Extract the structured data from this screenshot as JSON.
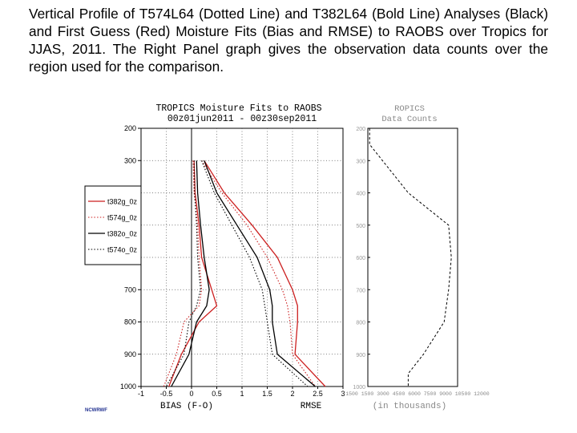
{
  "caption": "Vertical Profile of T574L64 (Dotted Line) and T382L64 (Bold Line) Analyses (Black) and First Guess (Red) Moisture Fits (Bias and RMSE) to RAOBS over Tropics for JJAS, 2011. The Right Panel graph gives the observation data counts over the region used for the comparison.",
  "credit": "NCWRWF",
  "chart_data": [
    {
      "type": "line",
      "title": "TROPICS Moisture Fits to RAOBS",
      "subtitle": "00z01jun2011 - 00z30sep2011",
      "xlabel_left": "BIAS (F-O)",
      "xlabel_right": "RMSE",
      "xlim": [
        -1,
        3
      ],
      "ylim": [
        200,
        1000
      ],
      "x_ticks": [
        "-1",
        "-0.5",
        "0",
        "0.5",
        "1",
        "1.5",
        "2",
        "2.5",
        "3"
      ],
      "y_ticks": [
        "200",
        "300",
        "700",
        "800",
        "900",
        "1000"
      ],
      "grid": true,
      "legend_position": "left",
      "series": [
        {
          "name": "t382g_0z",
          "color": "#cc1f1f",
          "style": "solid",
          "metric": "bias",
          "x": [
            0.05,
            0.07,
            0.15,
            0.2,
            0.4,
            0.5,
            0.15,
            -0.2,
            -0.45
          ],
          "y": [
            300,
            400,
            500,
            600,
            700,
            750,
            800,
            900,
            1000
          ]
        },
        {
          "name": "t382g_0z",
          "color": "#cc1f1f",
          "style": "solid",
          "metric": "rmse",
          "x": [
            0.25,
            0.65,
            1.2,
            1.7,
            2.0,
            2.1,
            2.1,
            2.05,
            2.65
          ],
          "y": [
            300,
            400,
            500,
            600,
            700,
            750,
            800,
            900,
            1000
          ]
        },
        {
          "name": "t574g_0z",
          "color": "#cc1f1f",
          "style": "dotted",
          "metric": "bias",
          "x": [
            0.03,
            0.05,
            0.12,
            0.15,
            0.2,
            0.15,
            -0.15,
            -0.3,
            -0.55
          ],
          "y": [
            300,
            400,
            500,
            600,
            700,
            750,
            800,
            900,
            1000
          ]
        },
        {
          "name": "t574g_0z",
          "color": "#cc1f1f",
          "style": "dotted",
          "metric": "rmse",
          "x": [
            0.2,
            0.6,
            1.1,
            1.5,
            1.8,
            1.9,
            1.95,
            2.0,
            2.45
          ],
          "y": [
            300,
            400,
            500,
            600,
            700,
            750,
            800,
            900,
            1000
          ]
        },
        {
          "name": "t382o_0z",
          "color": "#000000",
          "style": "solid",
          "metric": "bias",
          "x": [
            0.1,
            0.12,
            0.18,
            0.25,
            0.35,
            0.3,
            0.1,
            -0.05,
            -0.4
          ],
          "y": [
            300,
            400,
            500,
            600,
            700,
            750,
            800,
            900,
            1000
          ]
        },
        {
          "name": "t382o_0z",
          "color": "#000000",
          "style": "solid",
          "metric": "rmse",
          "x": [
            0.25,
            0.5,
            0.9,
            1.3,
            1.55,
            1.6,
            1.6,
            1.7,
            2.45
          ],
          "y": [
            300,
            400,
            500,
            600,
            700,
            750,
            800,
            900,
            1000
          ]
        },
        {
          "name": "t574o_0z",
          "color": "#000000",
          "style": "dotted",
          "metric": "bias",
          "x": [
            0.05,
            0.06,
            0.1,
            0.12,
            0.18,
            0.1,
            -0.05,
            -0.15,
            -0.5
          ],
          "y": [
            300,
            400,
            500,
            600,
            700,
            750,
            800,
            900,
            1000
          ]
        },
        {
          "name": "t574o_0z",
          "color": "#000000",
          "style": "dotted",
          "metric": "rmse",
          "x": [
            0.2,
            0.45,
            0.8,
            1.15,
            1.4,
            1.45,
            1.5,
            1.6,
            2.3
          ],
          "y": [
            300,
            400,
            500,
            600,
            700,
            750,
            800,
            900,
            1000
          ]
        }
      ]
    },
    {
      "type": "line",
      "title": "ROPICS",
      "subtitle": "Data Counts",
      "xlabel": "(in thousands)",
      "y_ticks": [
        "200",
        "300",
        "400",
        "500",
        "600",
        "700",
        "800",
        "900",
        "1000"
      ],
      "xlim": [
        0,
        1
      ],
      "ylim": [
        200,
        1000
      ],
      "x_tick_text": "-1500 1500 3000 4500 6000 7500 9000 10500 12000",
      "series": [
        {
          "name": "counts",
          "color": "#000000",
          "style": "dashed",
          "x": [
            0.02,
            0.02,
            0.45,
            0.9,
            0.93,
            0.9,
            0.85,
            0.62,
            0.45,
            0.45
          ],
          "y": [
            200,
            250,
            400,
            500,
            600,
            700,
            800,
            900,
            960,
            1000
          ]
        }
      ]
    }
  ]
}
